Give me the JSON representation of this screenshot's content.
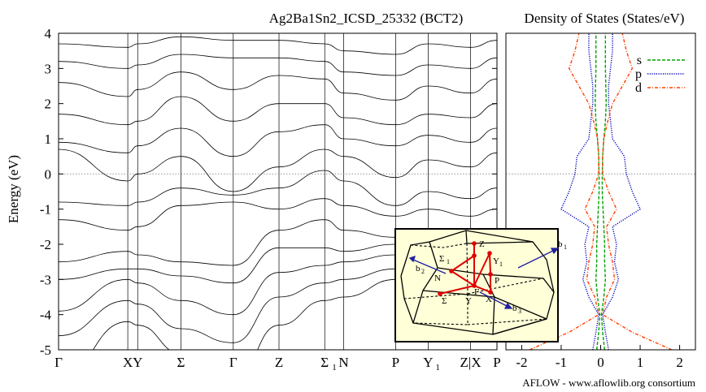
{
  "chart_data": [
    {
      "type": "line",
      "title": "Ag2Ba1Sn2_ICSD_25332 (BCT2)",
      "ylabel": "Energy (eV)",
      "ylim": [
        -5,
        4
      ],
      "yticks": [
        "-5",
        "-4",
        "-3",
        "-2",
        "-1",
        "0",
        "1",
        "2",
        "3",
        "4"
      ],
      "kpoints": [
        {
          "label": "Γ",
          "x": 0.0
        },
        {
          "label": "X",
          "x": 0.168
        },
        {
          "label": "Y",
          "x": 0.192
        },
        {
          "label": "Σ",
          "x": 0.297
        },
        {
          "label": "Γ",
          "x": 0.424
        },
        {
          "label": "Z",
          "x": 0.535
        },
        {
          "label": "Σ",
          "sub": "1",
          "x": 0.646
        },
        {
          "label": "N",
          "x": 0.692
        },
        {
          "label": "P",
          "x": 0.818
        },
        {
          "label": "Y",
          "sub": "1",
          "x": 0.897
        },
        {
          "label": "Z|X",
          "x": 1.0
        },
        {
          "label": "P",
          "x": 1.064
        }
      ],
      "fermi_level": 0,
      "bands": [
        [
          [
            0,
            -5.8
          ],
          [
            0.168,
            -4.2
          ],
          [
            0.192,
            -4.3
          ],
          [
            0.297,
            -5.1
          ],
          [
            0.424,
            -5.9
          ],
          [
            0.535,
            -4.3
          ],
          [
            0.646,
            -3.6
          ],
          [
            0.692,
            -3.5
          ],
          [
            0.818,
            -3.0
          ],
          [
            0.897,
            -3.4
          ],
          [
            1.0,
            -3.7
          ],
          [
            1.064,
            -3.0
          ]
        ],
        [
          [
            0,
            -4.6
          ],
          [
            0.168,
            -3.6
          ],
          [
            0.192,
            -3.7
          ],
          [
            0.297,
            -4.4
          ],
          [
            0.424,
            -4.8
          ],
          [
            0.535,
            -3.5
          ],
          [
            0.646,
            -3.1
          ],
          [
            0.692,
            -3.0
          ],
          [
            0.818,
            -2.7
          ],
          [
            0.897,
            -2.9
          ],
          [
            1.0,
            -3.2
          ],
          [
            1.064,
            -2.8
          ]
        ],
        [
          [
            0,
            -3.9
          ],
          [
            0.168,
            -3.0
          ],
          [
            0.192,
            -3.1
          ],
          [
            0.297,
            -3.6
          ],
          [
            0.424,
            -4.0
          ],
          [
            0.535,
            -2.8
          ],
          [
            0.646,
            -2.6
          ],
          [
            0.692,
            -2.5
          ],
          [
            0.818,
            -2.3
          ],
          [
            0.897,
            -2.5
          ],
          [
            1.0,
            -2.7
          ],
          [
            1.064,
            -2.5
          ]
        ],
        [
          [
            0,
            -3.0
          ],
          [
            0.168,
            -2.7
          ],
          [
            0.192,
            -2.7
          ],
          [
            0.297,
            -2.9
          ],
          [
            0.424,
            -3.1
          ],
          [
            0.535,
            -2.1
          ],
          [
            0.646,
            -2.1
          ],
          [
            0.692,
            -2.2
          ],
          [
            0.818,
            -2.0
          ],
          [
            0.897,
            -2.1
          ],
          [
            1.0,
            -2.2
          ],
          [
            1.064,
            -2.1
          ]
        ],
        [
          [
            0,
            -2.5
          ],
          [
            0.168,
            -2.2
          ],
          [
            0.192,
            -2.3
          ],
          [
            0.297,
            -2.5
          ],
          [
            0.424,
            -2.6
          ],
          [
            0.535,
            -1.6
          ],
          [
            0.646,
            -1.3
          ],
          [
            0.692,
            -1.6
          ],
          [
            0.818,
            -1.8
          ],
          [
            0.897,
            -1.7
          ],
          [
            1.0,
            -1.8
          ],
          [
            1.064,
            -1.6
          ]
        ],
        [
          [
            0,
            -1.3
          ],
          [
            0.168,
            -1.6
          ],
          [
            0.192,
            -1.5
          ],
          [
            0.297,
            -0.9
          ],
          [
            0.424,
            -0.8
          ],
          [
            0.535,
            -1.0
          ],
          [
            0.646,
            -0.7
          ],
          [
            0.692,
            -0.9
          ],
          [
            0.818,
            -1.2
          ],
          [
            0.897,
            -1.0
          ],
          [
            1.0,
            -1.2
          ],
          [
            1.064,
            -1.0
          ]
        ],
        [
          [
            0,
            -0.8
          ],
          [
            0.168,
            -0.9
          ],
          [
            0.192,
            -0.8
          ],
          [
            0.297,
            -0.4
          ],
          [
            0.424,
            -0.6
          ],
          [
            0.535,
            -0.4
          ],
          [
            0.646,
            0.1
          ],
          [
            0.692,
            -0.2
          ],
          [
            0.818,
            -0.9
          ],
          [
            0.897,
            -0.5
          ],
          [
            1.0,
            -0.7
          ],
          [
            1.064,
            -0.4
          ]
        ],
        [
          [
            0,
            0.7
          ],
          [
            0.168,
            -0.2
          ],
          [
            0.192,
            0.0
          ],
          [
            0.297,
            0.5
          ],
          [
            0.424,
            -0.5
          ],
          [
            0.535,
            0.2
          ],
          [
            0.646,
            0.7
          ],
          [
            0.692,
            0.5
          ],
          [
            0.818,
            -0.1
          ],
          [
            0.897,
            0.4
          ],
          [
            1.0,
            0.2
          ],
          [
            1.064,
            0.6
          ]
        ],
        [
          [
            0,
            0.9
          ],
          [
            0.168,
            0.6
          ],
          [
            0.192,
            0.8
          ],
          [
            0.297,
            1.3
          ],
          [
            0.424,
            0.5
          ],
          [
            0.535,
            1.2
          ],
          [
            0.646,
            1.4
          ],
          [
            0.692,
            1.0
          ],
          [
            0.818,
            0.8
          ],
          [
            0.897,
            1.1
          ],
          [
            1.0,
            0.9
          ],
          [
            1.064,
            1.3
          ]
        ],
        [
          [
            0,
            1.7
          ],
          [
            0.168,
            1.4
          ],
          [
            0.192,
            1.5
          ],
          [
            0.297,
            2.2
          ],
          [
            0.424,
            1.5
          ],
          [
            0.535,
            2.0
          ],
          [
            0.646,
            2.0
          ],
          [
            0.692,
            1.6
          ],
          [
            0.818,
            1.4
          ],
          [
            0.897,
            1.7
          ],
          [
            1.0,
            1.6
          ],
          [
            1.064,
            2.0
          ]
        ],
        [
          [
            0,
            2.6
          ],
          [
            0.168,
            2.2
          ],
          [
            0.192,
            2.4
          ],
          [
            0.297,
            2.9
          ],
          [
            0.424,
            2.4
          ],
          [
            0.535,
            2.8
          ],
          [
            0.646,
            2.7
          ],
          [
            0.692,
            2.3
          ],
          [
            0.818,
            2.1
          ],
          [
            0.897,
            2.5
          ],
          [
            1.0,
            2.3
          ],
          [
            1.064,
            2.7
          ]
        ],
        [
          [
            0,
            3.2
          ],
          [
            0.168,
            3.0
          ],
          [
            0.192,
            3.1
          ],
          [
            0.297,
            3.4
          ],
          [
            0.424,
            3.3
          ],
          [
            0.535,
            3.3
          ],
          [
            0.646,
            3.2
          ],
          [
            0.692,
            2.9
          ],
          [
            0.818,
            2.8
          ],
          [
            0.897,
            3.1
          ],
          [
            1.0,
            3.0
          ],
          [
            1.064,
            3.3
          ]
        ],
        [
          [
            0,
            3.7
          ],
          [
            0.168,
            3.6
          ],
          [
            0.192,
            3.7
          ],
          [
            0.297,
            3.9
          ],
          [
            0.424,
            3.8
          ],
          [
            0.535,
            3.8
          ],
          [
            0.646,
            3.7
          ],
          [
            0.692,
            3.5
          ],
          [
            0.818,
            3.4
          ],
          [
            0.897,
            3.7
          ],
          [
            1.0,
            3.6
          ],
          [
            1.064,
            3.8
          ]
        ]
      ]
    },
    {
      "type": "line",
      "title": "Density of States (States/eV)",
      "xlim": [
        -2.4,
        2.4
      ],
      "xticks": [
        "-2",
        "-1",
        "0",
        "1",
        "2"
      ],
      "ylim": [
        -5,
        4
      ],
      "series": [
        {
          "name": "s",
          "color": "#00a000",
          "style": "dashed",
          "energy": [
            -5,
            -4.5,
            -4,
            -3.5,
            -3,
            -2.5,
            -2,
            -1.5,
            -1,
            -0.5,
            0,
            0.5,
            1,
            1.5,
            2,
            2.5,
            3,
            3.5,
            4
          ],
          "values": [
            0.1,
            0.05,
            0.02,
            0.08,
            0.12,
            0.1,
            0.1,
            0.08,
            0.06,
            0.04,
            0.04,
            0.05,
            0.08,
            0.12,
            0.14,
            0.13,
            0.12,
            0.12,
            0.12
          ]
        },
        {
          "name": "p",
          "color": "#0000c0",
          "style": "dotted",
          "energy": [
            -5,
            -4.5,
            -4,
            -3.5,
            -3,
            -2.5,
            -2,
            -1.5,
            -1,
            -0.5,
            0,
            0.5,
            1,
            1.5,
            2,
            2.5,
            3,
            3.5,
            4
          ],
          "values": [
            0.2,
            0.12,
            0.05,
            0.3,
            0.45,
            0.35,
            0.4,
            0.3,
            1.0,
            0.8,
            0.65,
            0.6,
            0.3,
            0.25,
            0.2,
            0.2,
            0.25,
            0.3,
            0.3
          ]
        },
        {
          "name": "d",
          "color": "#ff4000",
          "style": "dash-dot",
          "energy": [
            -5,
            -4.5,
            -4,
            -3.5,
            -3,
            -2.5,
            -2,
            -1.5,
            -1,
            -0.5,
            0,
            0.5,
            1,
            1.5,
            2,
            2.5,
            3,
            3.5,
            4
          ],
          "values": [
            1.8,
            0.8,
            0.05,
            0.15,
            0.35,
            0.3,
            0.2,
            0.15,
            0.4,
            0.2,
            0.05,
            0.05,
            0.08,
            0.18,
            0.3,
            0.55,
            0.8,
            0.65,
            0.55
          ]
        }
      ]
    }
  ],
  "inset": {
    "labels": [
      "Z",
      "Y",
      "1",
      "Σ",
      "1",
      "N",
      "P",
      "Σ",
      "Y",
      "X",
      "Γ"
    ],
    "vectors": [
      {
        "name": "b",
        "sub": "1"
      },
      {
        "name": "b",
        "sub": "2"
      },
      {
        "name": "b",
        "sub": "3"
      }
    ]
  },
  "footer": "AFLOW - www.aflowlib.org consortium"
}
